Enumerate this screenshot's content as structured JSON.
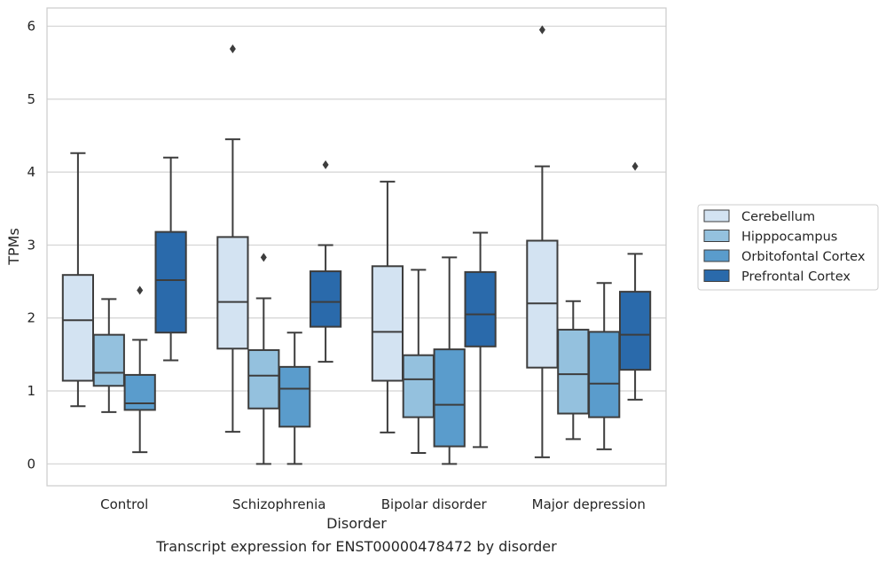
{
  "chart_data": {
    "type": "box",
    "caption": "Transcript expression for ENST00000478472 by disorder",
    "xlabel": "Disorder",
    "ylabel": "TPMs",
    "ylim": [
      -0.3,
      6.25
    ],
    "yticks": [
      "0",
      "1",
      "2",
      "3",
      "4",
      "5",
      "6"
    ],
    "grid": true,
    "legend_position": "right",
    "categories": [
      "Control",
      "Schizophrenia",
      "Bipolar disorder",
      "Major depression"
    ],
    "series": [
      {
        "name": "Cerebellum",
        "color": "#d3e3f2",
        "boxes": [
          {
            "whisker_low": 0.79,
            "q1": 1.14,
            "median": 1.97,
            "q3": 2.59,
            "whisker_high": 4.26,
            "outliers": []
          },
          {
            "whisker_low": 0.44,
            "q1": 1.58,
            "median": 2.22,
            "q3": 3.11,
            "whisker_high": 4.45,
            "outliers": [
              5.69
            ]
          },
          {
            "whisker_low": 0.43,
            "q1": 1.14,
            "median": 1.81,
            "q3": 2.71,
            "whisker_high": 3.87,
            "outliers": []
          },
          {
            "whisker_low": 0.09,
            "q1": 1.32,
            "median": 2.2,
            "q3": 3.06,
            "whisker_high": 4.08,
            "outliers": [
              5.95
            ]
          }
        ]
      },
      {
        "name": "Hipppocampus",
        "color": "#94c1de",
        "boxes": [
          {
            "whisker_low": 0.71,
            "q1": 1.07,
            "median": 1.25,
            "q3": 1.77,
            "whisker_high": 2.26,
            "outliers": []
          },
          {
            "whisker_low": 0.0,
            "q1": 0.76,
            "median": 1.21,
            "q3": 1.56,
            "whisker_high": 2.27,
            "outliers": [
              2.83
            ]
          },
          {
            "whisker_low": 0.15,
            "q1": 0.64,
            "median": 1.16,
            "q3": 1.49,
            "whisker_high": 2.66,
            "outliers": []
          },
          {
            "whisker_low": 0.34,
            "q1": 0.69,
            "median": 1.23,
            "q3": 1.84,
            "whisker_high": 2.23,
            "outliers": []
          }
        ]
      },
      {
        "name": "Orbitofontal Cortex",
        "color": "#5a9ccc",
        "boxes": [
          {
            "whisker_low": 0.16,
            "q1": 0.74,
            "median": 0.83,
            "q3": 1.22,
            "whisker_high": 1.7,
            "outliers": [
              2.38
            ]
          },
          {
            "whisker_low": 0.0,
            "q1": 0.51,
            "median": 1.03,
            "q3": 1.33,
            "whisker_high": 1.8,
            "outliers": []
          },
          {
            "whisker_low": 0.0,
            "q1": 0.24,
            "median": 0.81,
            "q3": 1.57,
            "whisker_high": 2.83,
            "outliers": []
          },
          {
            "whisker_low": 0.2,
            "q1": 0.64,
            "median": 1.1,
            "q3": 1.81,
            "whisker_high": 2.48,
            "outliers": []
          }
        ]
      },
      {
        "name": "Prefrontal Cortex",
        "color": "#2a6aab",
        "boxes": [
          {
            "whisker_low": 1.42,
            "q1": 1.8,
            "median": 2.52,
            "q3": 3.18,
            "whisker_high": 4.2,
            "outliers": []
          },
          {
            "whisker_low": 1.4,
            "q1": 1.88,
            "median": 2.22,
            "q3": 2.64,
            "whisker_high": 3.0,
            "outliers": [
              4.1
            ]
          },
          {
            "whisker_low": 0.23,
            "q1": 1.61,
            "median": 2.05,
            "q3": 2.63,
            "whisker_high": 3.17,
            "outliers": []
          },
          {
            "whisker_low": 0.88,
            "q1": 1.29,
            "median": 1.77,
            "q3": 2.36,
            "whisker_high": 2.88,
            "outliers": [
              4.08
            ]
          }
        ]
      }
    ]
  }
}
